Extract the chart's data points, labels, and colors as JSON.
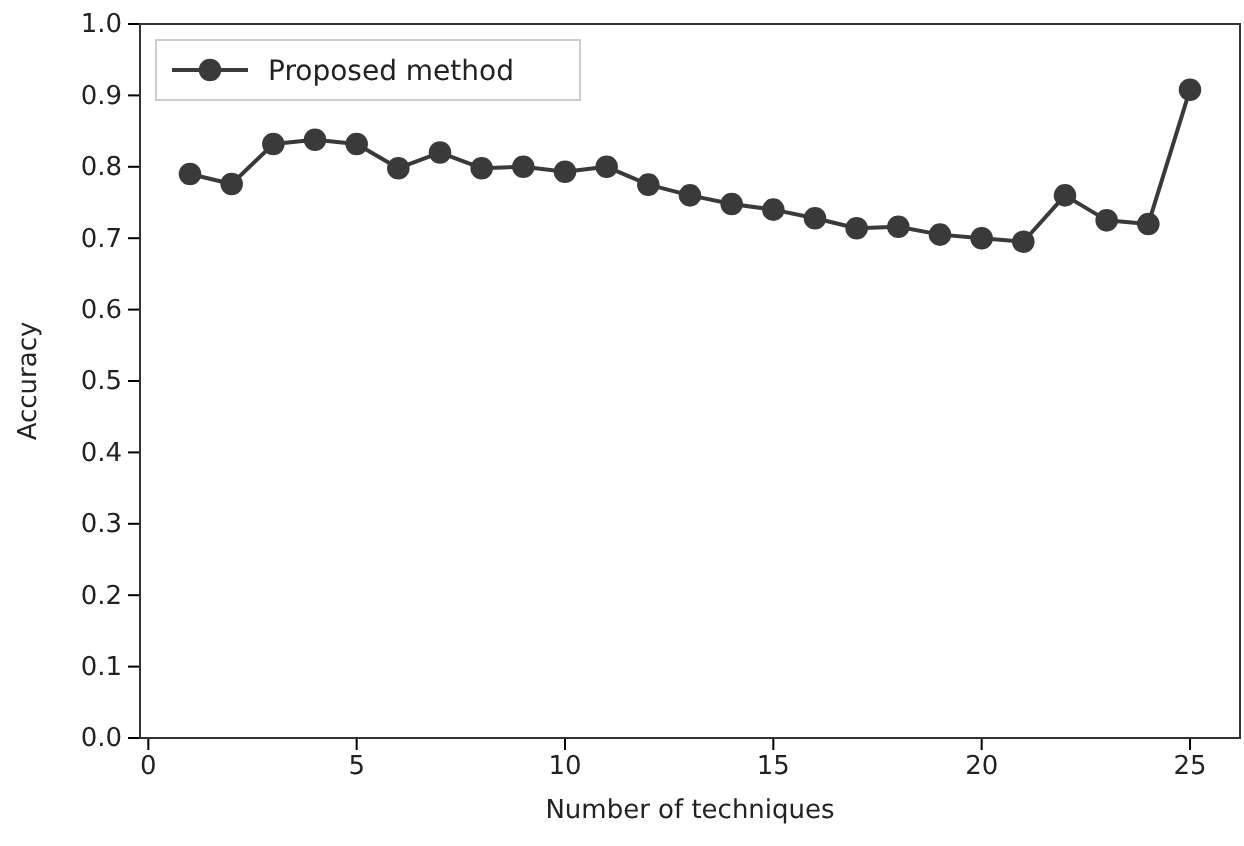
{
  "chart_data": {
    "type": "line",
    "xlabel": "Number of techniques",
    "ylabel": "Accuracy",
    "x": [
      1,
      2,
      3,
      4,
      5,
      6,
      7,
      8,
      9,
      10,
      11,
      12,
      13,
      14,
      15,
      16,
      17,
      18,
      19,
      20,
      21,
      22,
      23,
      24,
      25
    ],
    "series": [
      {
        "name": "Proposed method",
        "color": "#3a3a3a",
        "values": [
          0.79,
          0.776,
          0.832,
          0.838,
          0.832,
          0.798,
          0.82,
          0.798,
          0.8,
          0.793,
          0.8,
          0.775,
          0.76,
          0.748,
          0.74,
          0.728,
          0.714,
          0.716,
          0.705,
          0.7,
          0.695,
          0.76,
          0.725,
          0.72,
          0.908
        ]
      }
    ],
    "xlim": [
      -0.2,
      26.2
    ],
    "xticks": [
      0,
      5,
      10,
      15,
      20,
      25
    ],
    "ylim": [
      0,
      1
    ],
    "yticks": [
      {
        "value": 0,
        "label": "0.0"
      },
      0.1,
      0.2,
      0.3,
      0.4,
      0.5,
      0.6,
      0.7,
      0.8,
      0.9,
      {
        "value": 1,
        "label": "1.0"
      }
    ],
    "legend": "top left",
    "marker": "circle",
    "line_style": "solid",
    "grid": false
  }
}
